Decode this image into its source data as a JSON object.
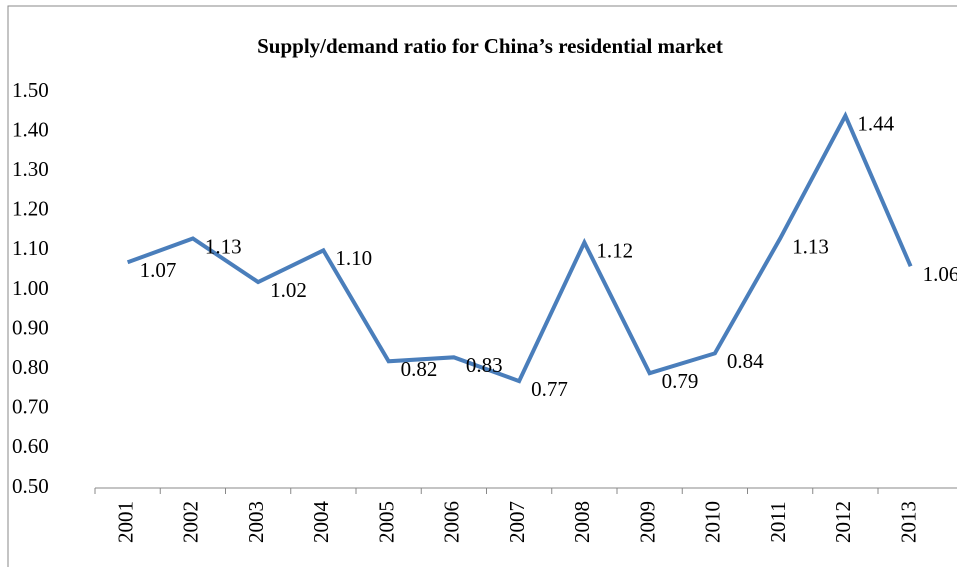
{
  "chart_data": {
    "type": "line",
    "title": "Supply/demand ratio for China’s residential market",
    "categories": [
      "2001",
      "2002",
      "2003",
      "2004",
      "2005",
      "2006",
      "2007",
      "2008",
      "2009",
      "2010",
      "2011",
      "2012",
      "2013"
    ],
    "series": [
      {
        "color": "#4a7ebb",
        "values": [
          1.07,
          1.13,
          1.02,
          1.1,
          0.82,
          0.83,
          0.77,
          1.12,
          0.79,
          0.84,
          1.13,
          1.44,
          1.06
        ],
        "value_labels": [
          "1.07",
          "1.13",
          "1.02",
          "1.10",
          "0.82",
          "0.83",
          "0.77",
          "1.12",
          "0.79",
          "0.84",
          "1.13",
          "1.44",
          "1.06"
        ]
      }
    ],
    "ylim": [
      0.5,
      1.5
    ],
    "yticks": [
      {
        "value": 0.5,
        "label": "0.50"
      },
      {
        "value": 0.6,
        "label": "0.60"
      },
      {
        "value": 0.7,
        "label": "0.70"
      },
      {
        "value": 0.8,
        "label": "0.80"
      },
      {
        "value": 0.9,
        "label": "0.90"
      },
      {
        "value": 1.0,
        "label": "1.00"
      },
      {
        "value": 1.1,
        "label": "1.10"
      },
      {
        "value": 1.2,
        "label": "1.20"
      },
      {
        "value": 1.3,
        "label": "1.30"
      },
      {
        "value": 1.4,
        "label": "1.40"
      },
      {
        "value": 1.5,
        "label": "1.50"
      }
    ],
    "grid": false
  }
}
